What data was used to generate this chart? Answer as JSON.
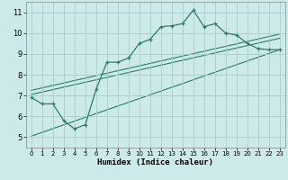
{
  "xlabel": "Humidex (Indice chaleur)",
  "bg_color": "#cdeaea",
  "grid_color": "#aacccc",
  "line_color": "#2d7a6e",
  "xlim": [
    -0.5,
    23.5
  ],
  "ylim": [
    4.5,
    11.5
  ],
  "xticks": [
    0,
    1,
    2,
    3,
    4,
    5,
    6,
    7,
    8,
    9,
    10,
    11,
    12,
    13,
    14,
    15,
    16,
    17,
    18,
    19,
    20,
    21,
    22,
    23
  ],
  "yticks": [
    5,
    6,
    7,
    8,
    9,
    10,
    11
  ],
  "main_x": [
    0,
    1,
    2,
    3,
    4,
    5,
    6,
    7,
    8,
    9,
    10,
    11,
    12,
    13,
    14,
    15,
    16,
    17,
    18,
    19,
    20,
    21,
    22,
    23
  ],
  "main_y": [
    6.9,
    6.6,
    6.6,
    5.8,
    5.4,
    5.6,
    7.3,
    8.6,
    8.6,
    8.8,
    9.5,
    9.7,
    10.3,
    10.35,
    10.45,
    11.1,
    10.3,
    10.45,
    10.0,
    9.9,
    9.5,
    9.25,
    9.2,
    9.2
  ],
  "line1_x": [
    0,
    23
  ],
  "line1_y": [
    7.05,
    9.75
  ],
  "line2_x": [
    0,
    23
  ],
  "line2_y": [
    7.25,
    9.95
  ],
  "line3_x": [
    0,
    23
  ],
  "line3_y": [
    5.05,
    9.2
  ]
}
